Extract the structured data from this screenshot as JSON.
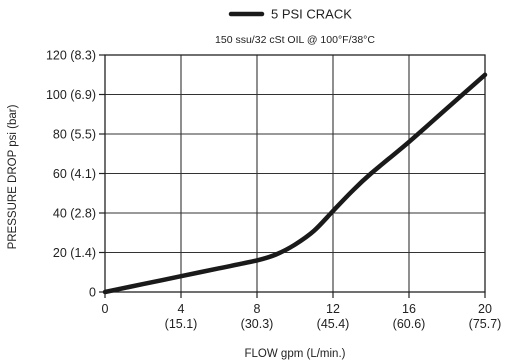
{
  "chart_data": {
    "type": "line",
    "legend_position": "top-center",
    "grid": true,
    "title": "",
    "subtitle": "150 ssu/32 cSt OIL @ 100°F/38°C",
    "xlabel": "FLOW gpm (L/min.)",
    "ylabel": "PRESSURE DROP psi (bar)",
    "xlim": [
      0,
      20
    ],
    "ylim": [
      0,
      120
    ],
    "x_ticks": [
      {
        "value": 0,
        "label": "0",
        "sublabel": ""
      },
      {
        "value": 4,
        "label": "4",
        "sublabel": "(15.1)"
      },
      {
        "value": 8,
        "label": "8",
        "sublabel": "(30.3)"
      },
      {
        "value": 12,
        "label": "12",
        "sublabel": "(45.4)"
      },
      {
        "value": 16,
        "label": "16",
        "sublabel": "(60.6)"
      },
      {
        "value": 20,
        "label": "20",
        "sublabel": "(75.7)"
      }
    ],
    "y_ticks": [
      {
        "value": 0,
        "label": "0"
      },
      {
        "value": 20,
        "label": "20 (1.4)"
      },
      {
        "value": 40,
        "label": "40 (2.8)"
      },
      {
        "value": 60,
        "label": "60 (4.1)"
      },
      {
        "value": 80,
        "label": "80 (5.5)"
      },
      {
        "value": 100,
        "label": "100 (6.9)"
      },
      {
        "value": 120,
        "label": "120 (8.3)"
      }
    ],
    "series": [
      {
        "name": "5 PSI CRACK",
        "color": "#1a1a1a",
        "x": [
          0,
          2,
          4,
          6,
          8,
          9,
          10,
          11,
          12,
          13,
          14,
          16,
          18,
          20
        ],
        "y": [
          0,
          4,
          8,
          12,
          16,
          19,
          24,
          31,
          41,
          51,
          60,
          76,
          93,
          110
        ]
      }
    ]
  }
}
